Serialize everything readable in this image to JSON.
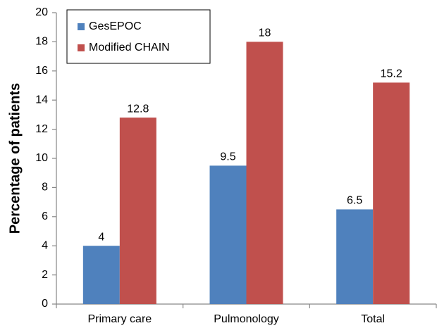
{
  "chart_data": {
    "type": "bar",
    "y_label": "Percentage of patients",
    "categories": [
      "Primary care",
      "Pulmonology",
      "Total"
    ],
    "series": [
      {
        "name": "GesEPOC",
        "color": "#4f81bd",
        "values": [
          4,
          9.5,
          6.5
        ]
      },
      {
        "name": "Modified CHAIN",
        "color": "#c0504d",
        "values": [
          12.8,
          18,
          15.2
        ]
      }
    ],
    "ylim": [
      0,
      20
    ],
    "yticks": [
      0,
      2,
      4,
      6,
      8,
      10,
      12,
      14,
      16,
      18,
      20
    ],
    "grid": false,
    "legend": "upper left"
  }
}
